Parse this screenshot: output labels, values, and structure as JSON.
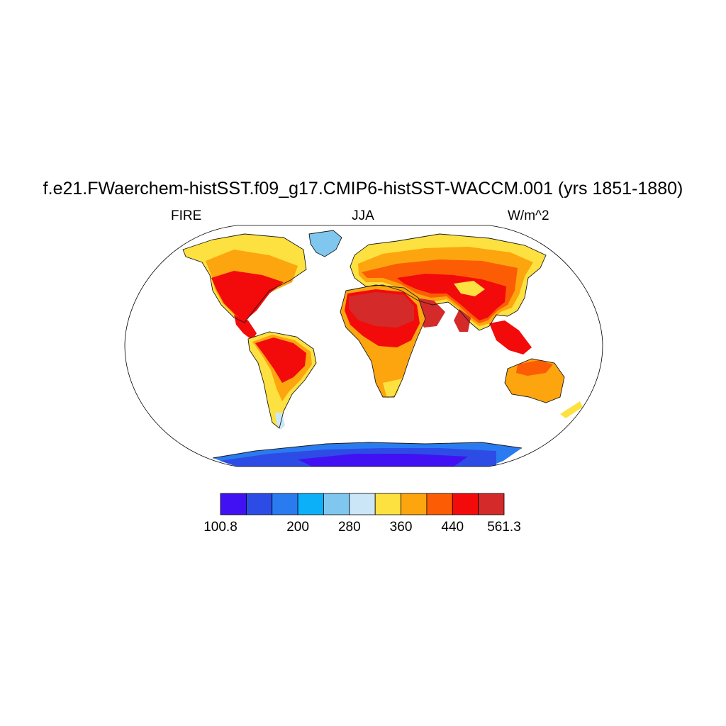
{
  "figure": {
    "title": "f.e21.FWaerchem-histSST.f09_g17.CMIP6-histSST-WACCM.001 (yrs 1851-1880)",
    "left_string": "FIRE",
    "center_string": "JJA",
    "right_string": "W/m^2"
  },
  "colorbar": {
    "colors": [
      "#4211f3",
      "#2d4ce6",
      "#2a7bf0",
      "#0cb0f8",
      "#7fc7ee",
      "#cbe6f7",
      "#fde140",
      "#fda50e",
      "#fc5d04",
      "#f30a0a",
      "#d42a2a"
    ],
    "labels": [
      "100.8",
      "200",
      "280",
      "360",
      "440",
      "561.3"
    ]
  },
  "map": {
    "projection": "Robinson",
    "region_colors": {
      "arctic_north": "#fde140",
      "temperate_north": "#fda50e",
      "midlatitude": "#fc5d04",
      "subtropics": "#f30a0a",
      "desert": "#d42a2a",
      "greenland": "#7fc7ee",
      "antarctica": "#2d4ce6",
      "antarctica_inner": "#4211f3",
      "antarctica_coast": "#2a7bf0",
      "patagonia": "#cbe6f7"
    }
  }
}
